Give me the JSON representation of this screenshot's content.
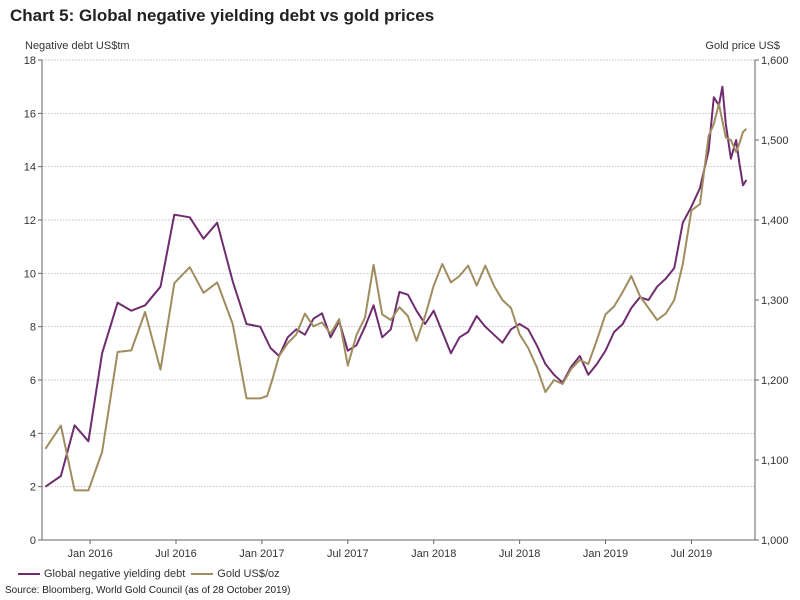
{
  "chart_data": {
    "type": "line",
    "title": "Chart 5: Global negative yielding debt vs gold prices",
    "ylabel_left": "Negative debt US$tm",
    "ylabel_right": "Gold price US$",
    "ylim_left": [
      0,
      18
    ],
    "ylim_right": [
      1000,
      1600
    ],
    "yticks_left": [
      0,
      2,
      4,
      6,
      8,
      10,
      12,
      14,
      16,
      18
    ],
    "yticks_right": [
      1000,
      1100,
      1200,
      1300,
      1400,
      1500,
      1600
    ],
    "yticklabels_right": [
      "1,000",
      "1,100",
      "1,200",
      "1,300",
      "1,400",
      "1,500",
      "1,600"
    ],
    "x_range": [
      2015.72,
      2019.87
    ],
    "x_ticks": [
      {
        "label": "Jan 2016",
        "x": 2016.0
      },
      {
        "label": "Jul 2016",
        "x": 2016.5
      },
      {
        "label": "Jan 2017",
        "x": 2017.0
      },
      {
        "label": "Jul 2017",
        "x": 2017.5
      },
      {
        "label": "Jan 2018",
        "x": 2018.0
      },
      {
        "label": "Jul 2018",
        "x": 2018.5
      },
      {
        "label": "Jan 2019",
        "x": 2019.0
      },
      {
        "label": "Jul 2019",
        "x": 2019.5
      }
    ],
    "grid": true,
    "legend_position": "bottom-left",
    "series": [
      {
        "name": "Global negative yielding debt",
        "axis": "left",
        "color": "#6f2c6f",
        "points": [
          [
            2015.74,
            2.0
          ],
          [
            2015.83,
            2.4
          ],
          [
            2015.91,
            4.3
          ],
          [
            2015.99,
            3.7
          ],
          [
            2016.07,
            7.0
          ],
          [
            2016.16,
            8.9
          ],
          [
            2016.24,
            8.6
          ],
          [
            2016.32,
            8.8
          ],
          [
            2016.41,
            9.5
          ],
          [
            2016.49,
            12.2
          ],
          [
            2016.58,
            12.1
          ],
          [
            2016.66,
            11.3
          ],
          [
            2016.74,
            11.9
          ],
          [
            2016.83,
            9.7
          ],
          [
            2016.91,
            8.1
          ],
          [
            2016.99,
            8.0
          ],
          [
            2017.05,
            7.2
          ],
          [
            2017.1,
            6.9
          ],
          [
            2017.15,
            7.6
          ],
          [
            2017.2,
            7.9
          ],
          [
            2017.25,
            7.7
          ],
          [
            2017.3,
            8.3
          ],
          [
            2017.35,
            8.5
          ],
          [
            2017.4,
            7.6
          ],
          [
            2017.45,
            8.2
          ],
          [
            2017.5,
            7.1
          ],
          [
            2017.55,
            7.3
          ],
          [
            2017.6,
            8.0
          ],
          [
            2017.65,
            8.8
          ],
          [
            2017.7,
            7.6
          ],
          [
            2017.75,
            7.9
          ],
          [
            2017.8,
            9.3
          ],
          [
            2017.85,
            9.2
          ],
          [
            2017.9,
            8.6
          ],
          [
            2017.95,
            8.1
          ],
          [
            2018.0,
            8.6
          ],
          [
            2018.05,
            7.8
          ],
          [
            2018.1,
            7.0
          ],
          [
            2018.15,
            7.6
          ],
          [
            2018.2,
            7.8
          ],
          [
            2018.25,
            8.4
          ],
          [
            2018.3,
            8.0
          ],
          [
            2018.35,
            7.7
          ],
          [
            2018.4,
            7.4
          ],
          [
            2018.45,
            7.9
          ],
          [
            2018.5,
            8.1
          ],
          [
            2018.55,
            7.9
          ],
          [
            2018.6,
            7.3
          ],
          [
            2018.65,
            6.6
          ],
          [
            2018.7,
            6.2
          ],
          [
            2018.75,
            5.9
          ],
          [
            2018.8,
            6.5
          ],
          [
            2018.85,
            6.9
          ],
          [
            2018.9,
            6.2
          ],
          [
            2018.95,
            6.6
          ],
          [
            2019.0,
            7.1
          ],
          [
            2019.05,
            7.8
          ],
          [
            2019.1,
            8.1
          ],
          [
            2019.15,
            8.7
          ],
          [
            2019.2,
            9.1
          ],
          [
            2019.25,
            9.0
          ],
          [
            2019.3,
            9.5
          ],
          [
            2019.35,
            9.8
          ],
          [
            2019.4,
            10.2
          ],
          [
            2019.45,
            11.9
          ],
          [
            2019.5,
            12.5
          ],
          [
            2019.55,
            13.2
          ],
          [
            2019.6,
            14.6
          ],
          [
            2019.63,
            16.6
          ],
          [
            2019.66,
            16.3
          ],
          [
            2019.68,
            17.0
          ],
          [
            2019.7,
            15.6
          ],
          [
            2019.73,
            14.3
          ],
          [
            2019.76,
            15.0
          ],
          [
            2019.78,
            14.1
          ],
          [
            2019.8,
            13.3
          ],
          [
            2019.82,
            13.5
          ]
        ]
      },
      {
        "name": "Gold US$/oz",
        "axis": "right",
        "color": "#a08d5f",
        "points": [
          [
            2015.74,
            1114
          ],
          [
            2015.83,
            1143
          ],
          [
            2015.91,
            1062
          ],
          [
            2015.99,
            1062
          ],
          [
            2016.07,
            1110
          ],
          [
            2016.16,
            1235
          ],
          [
            2016.24,
            1237
          ],
          [
            2016.32,
            1285
          ],
          [
            2016.41,
            1213
          ],
          [
            2016.49,
            1321
          ],
          [
            2016.58,
            1341
          ],
          [
            2016.66,
            1309
          ],
          [
            2016.74,
            1322
          ],
          [
            2016.83,
            1270
          ],
          [
            2016.91,
            1177
          ],
          [
            2016.99,
            1177
          ],
          [
            2017.03,
            1180
          ],
          [
            2017.06,
            1200
          ],
          [
            2017.1,
            1230
          ],
          [
            2017.15,
            1246
          ],
          [
            2017.2,
            1257
          ],
          [
            2017.25,
            1283
          ],
          [
            2017.3,
            1267
          ],
          [
            2017.35,
            1272
          ],
          [
            2017.4,
            1258
          ],
          [
            2017.45,
            1276
          ],
          [
            2017.5,
            1218
          ],
          [
            2017.55,
            1256
          ],
          [
            2017.6,
            1278
          ],
          [
            2017.65,
            1344
          ],
          [
            2017.7,
            1282
          ],
          [
            2017.75,
            1275
          ],
          [
            2017.8,
            1291
          ],
          [
            2017.85,
            1280
          ],
          [
            2017.9,
            1249
          ],
          [
            2017.95,
            1280
          ],
          [
            2018.0,
            1318
          ],
          [
            2018.05,
            1345
          ],
          [
            2018.1,
            1322
          ],
          [
            2018.15,
            1330
          ],
          [
            2018.2,
            1343
          ],
          [
            2018.25,
            1318
          ],
          [
            2018.3,
            1343
          ],
          [
            2018.35,
            1318
          ],
          [
            2018.4,
            1300
          ],
          [
            2018.45,
            1290
          ],
          [
            2018.5,
            1257
          ],
          [
            2018.55,
            1240
          ],
          [
            2018.6,
            1216
          ],
          [
            2018.65,
            1185
          ],
          [
            2018.7,
            1200
          ],
          [
            2018.75,
            1195
          ],
          [
            2018.8,
            1214
          ],
          [
            2018.85,
            1225
          ],
          [
            2018.9,
            1220
          ],
          [
            2018.95,
            1250
          ],
          [
            2019.0,
            1282
          ],
          [
            2019.05,
            1292
          ],
          [
            2019.1,
            1310
          ],
          [
            2019.15,
            1330
          ],
          [
            2019.2,
            1305
          ],
          [
            2019.25,
            1290
          ],
          [
            2019.3,
            1275
          ],
          [
            2019.35,
            1283
          ],
          [
            2019.4,
            1300
          ],
          [
            2019.45,
            1345
          ],
          [
            2019.5,
            1412
          ],
          [
            2019.55,
            1420
          ],
          [
            2019.6,
            1505
          ],
          [
            2019.63,
            1520
          ],
          [
            2019.66,
            1545
          ],
          [
            2019.7,
            1503
          ],
          [
            2019.73,
            1500
          ],
          [
            2019.76,
            1485
          ],
          [
            2019.78,
            1496
          ],
          [
            2019.8,
            1510
          ],
          [
            2019.82,
            1514
          ]
        ]
      }
    ],
    "legend": [
      "Global negative yielding debt",
      "Gold US$/oz"
    ],
    "source": "Source: Bloomberg, World Gold Council (as of 28 October 2019)"
  }
}
